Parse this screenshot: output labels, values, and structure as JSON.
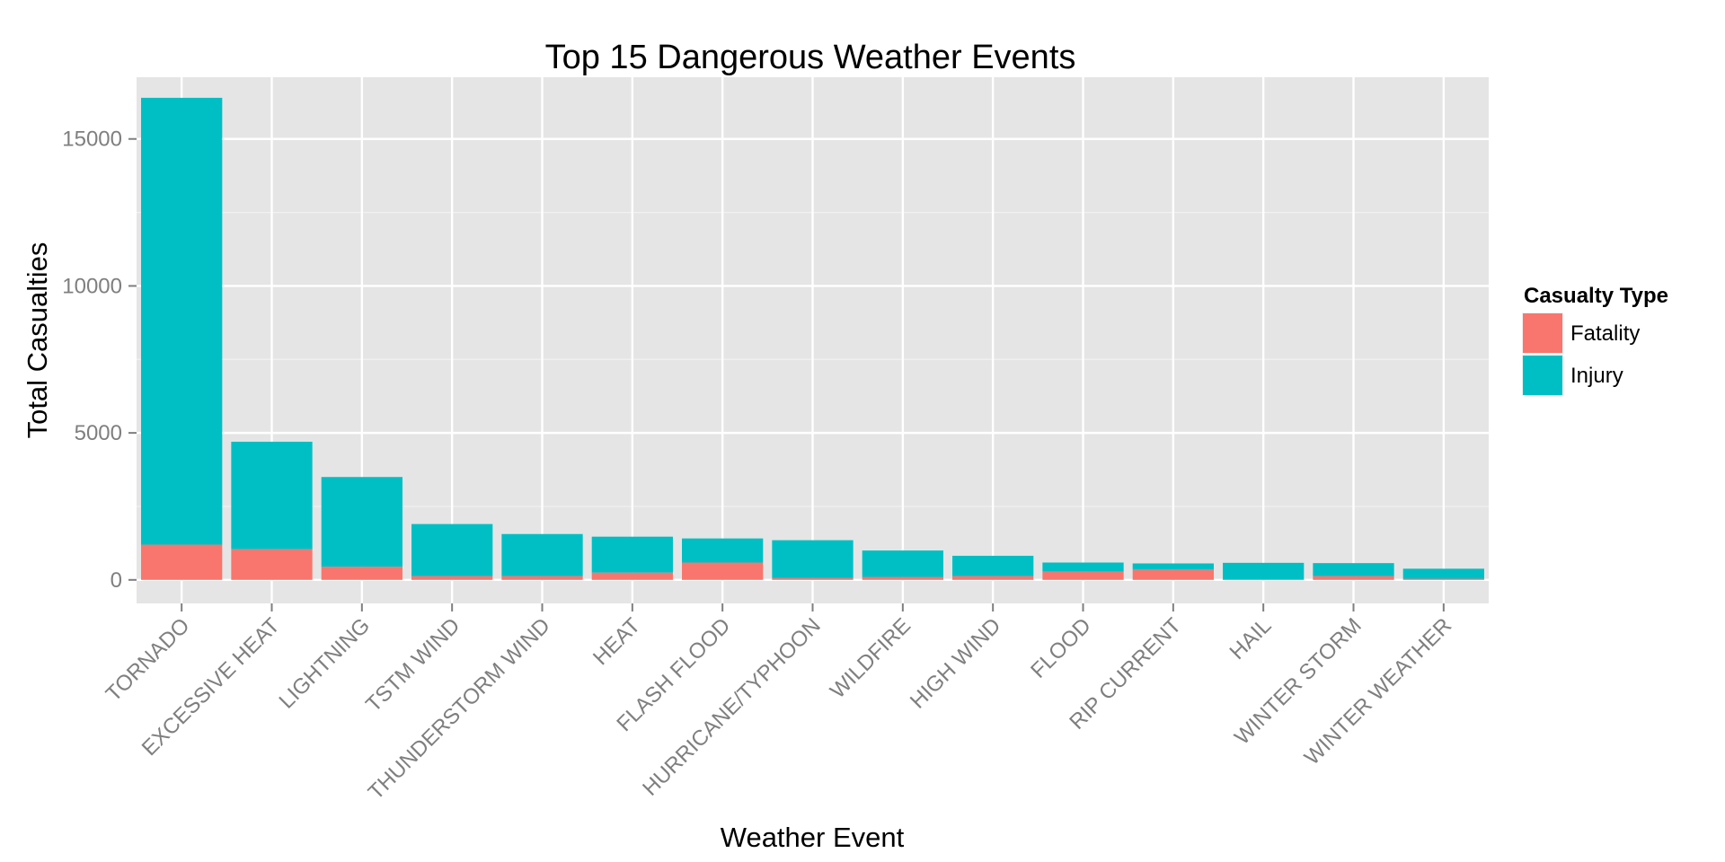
{
  "chart_data": {
    "type": "bar",
    "stacked": true,
    "title": "Top 15 Dangerous Weather Events",
    "xlabel": "Weather Event",
    "ylabel": "Total Casualties",
    "ylim": [
      -800,
      17100
    ],
    "yticks": [
      0,
      5000,
      10000,
      15000
    ],
    "grid": true,
    "legend_position": "right",
    "categories": [
      "TORNADO",
      "EXCESSIVE HEAT",
      "LIGHTNING",
      "TSTM WIND",
      "THUNDERSTORM WIND",
      "HEAT",
      "FLASH FLOOD",
      "HURRICANE/TYPHOON",
      "WILDFIRE",
      "HIGH WIND",
      "FLOOD",
      "RIP CURRENT",
      "HAIL",
      "WINTER STORM",
      "WINTER WEATHER"
    ],
    "legend": {
      "title": "Casualty Type"
    },
    "series": [
      {
        "name": "Fatality",
        "color": "#F8766D",
        "values": [
          1200,
          1050,
          450,
          130,
          130,
          250,
          590,
          60,
          100,
          130,
          280,
          350,
          10,
          130,
          40
        ]
      },
      {
        "name": "Injury",
        "color": "#00BFC4",
        "values": [
          15200,
          3650,
          3050,
          1770,
          1430,
          1220,
          820,
          1290,
          900,
          690,
          310,
          210,
          570,
          440,
          340
        ]
      }
    ],
    "panel_background": "#E5E5E5",
    "grid_color": "#FFFFFF"
  }
}
